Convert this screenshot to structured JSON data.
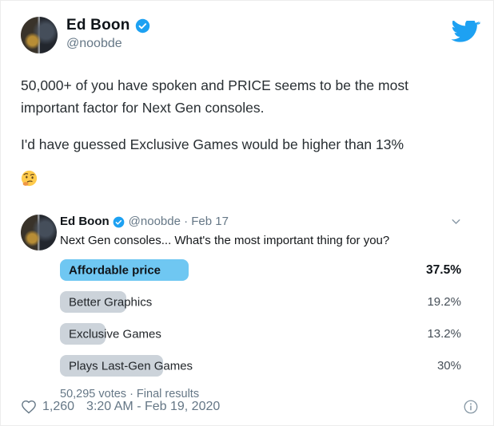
{
  "tweet": {
    "author": {
      "name": "Ed Boon",
      "handle": "@noobde",
      "verified": true
    },
    "body_paragraph1": "50,000+ of you have spoken and PRICE seems to be the most important factor for Next Gen consoles.",
    "body_paragraph2": "I'd have guessed Exclusive Games would be higher than 13%",
    "emoji": "thinking-face",
    "footer": {
      "like_count": "1,260",
      "timestamp": "3:20 AM - Feb 19, 2020"
    }
  },
  "quoted_tweet": {
    "author": {
      "name": "Ed Boon",
      "verified": true,
      "meta": "@noobde · Feb 17"
    },
    "text": "Next Gen consoles... What's the most important thing for you?",
    "poll": {
      "type": "bar",
      "options": [
        {
          "label": "Affordable price",
          "pct": "37.5%",
          "value": 37.5,
          "winner": true
        },
        {
          "label": "Better Graphics",
          "pct": "19.2%",
          "value": 19.2,
          "winner": false
        },
        {
          "label": "Exclusive Games",
          "pct": "13.2%",
          "value": 13.2,
          "winner": false
        },
        {
          "label": "Plays Last-Gen Games",
          "pct": "30%",
          "value": 30,
          "winner": false
        }
      ],
      "footer": "50,295 votes · Final results"
    }
  },
  "icons": {
    "header_right": "twitter-bird-icon",
    "verified_badge": "verified-check-icon",
    "quote_collapse": "chevron-down-icon",
    "like": "heart-outline-icon",
    "footer_right": "info-circle-icon",
    "emoji": "thinking-face-emoji"
  },
  "colors": {
    "twitter_blue": "#1da1f2",
    "poll_winner_bar": "#6fc7f2",
    "poll_bar_gray": "#ccd3da",
    "muted_text": "#657786",
    "text": "#0f1419"
  }
}
